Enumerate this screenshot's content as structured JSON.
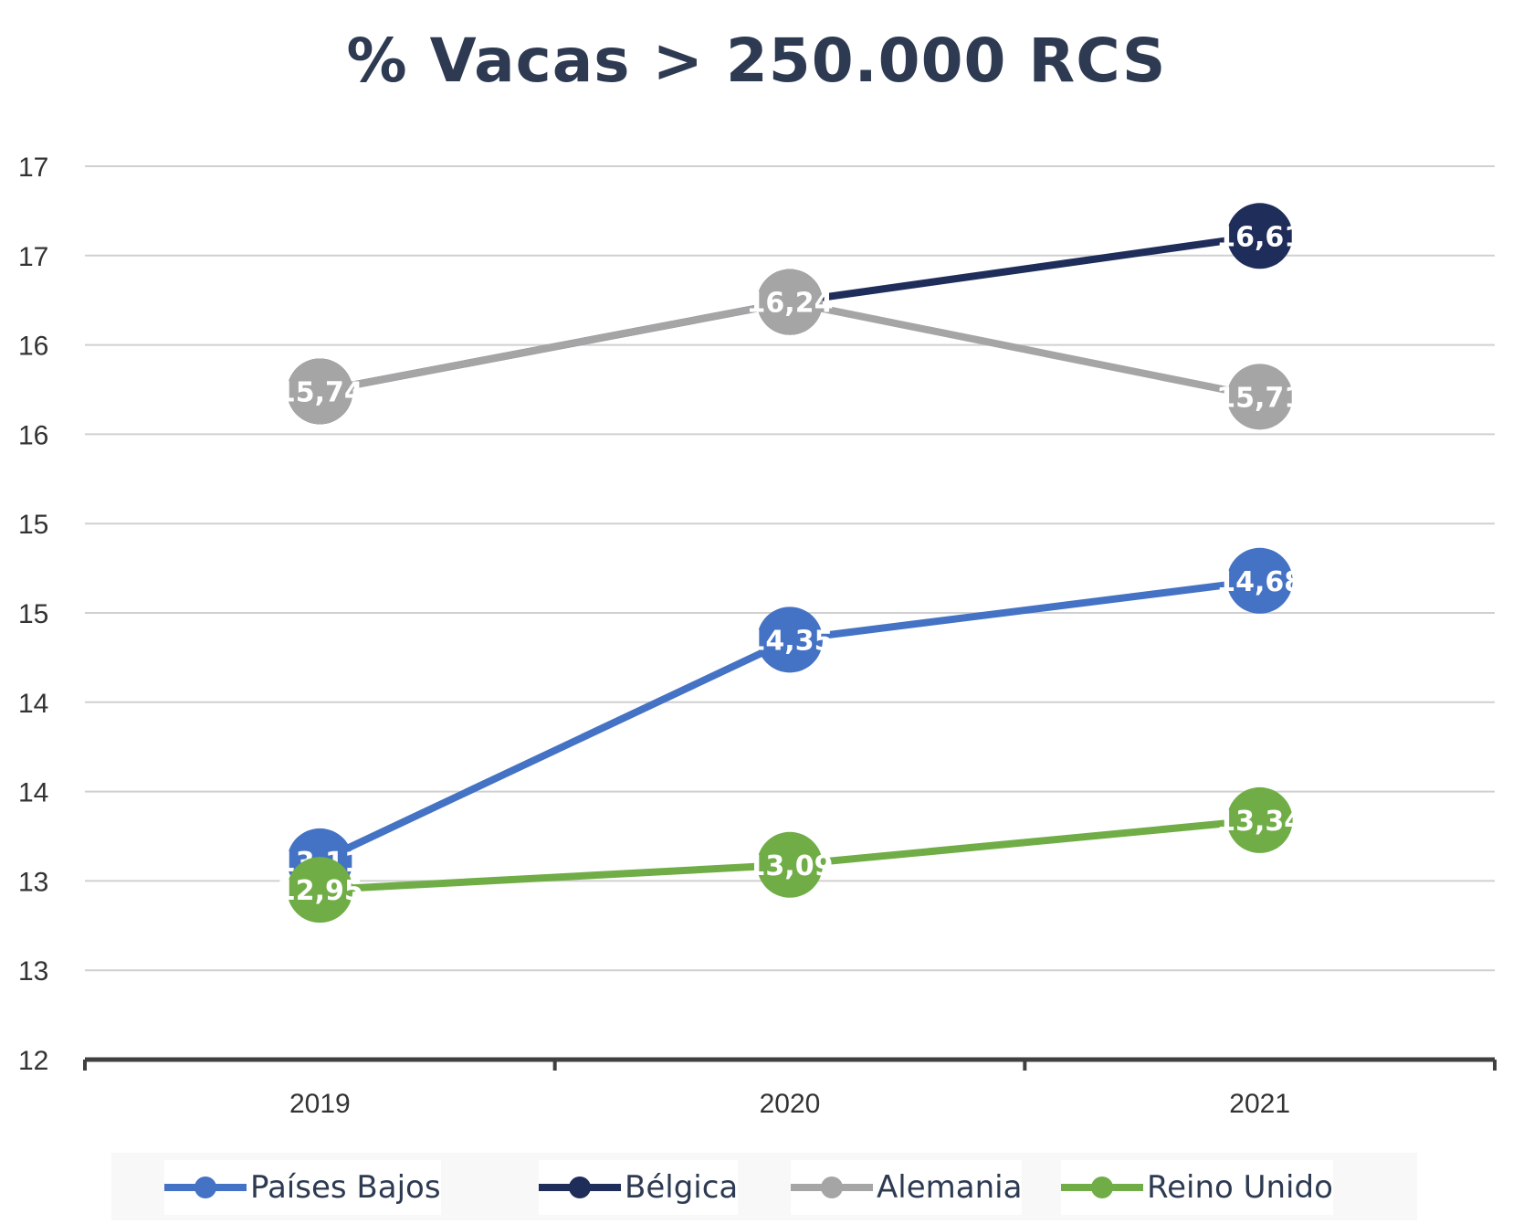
{
  "chart_data": {
    "type": "line",
    "title": "% Vacas > 250.000 RCS",
    "categories": [
      "2019",
      "2020",
      "2021"
    ],
    "y_tick_labels": [
      "12",
      "13",
      "13",
      "14",
      "14",
      "15",
      "15",
      "16",
      "16",
      "17",
      "17"
    ],
    "ylim": [
      12,
      17
    ],
    "grid": true,
    "legend_position": "bottom",
    "series": [
      {
        "name": "Países Bajos",
        "values": [
          13.11,
          14.35,
          14.68
        ],
        "labels": [
          "13,11",
          "14,35",
          "14,68"
        ],
        "color": "#4472c4"
      },
      {
        "name": "Bélgica",
        "values": [
          15.74,
          16.24,
          16.61
        ],
        "labels": [
          "15,74",
          "16,24",
          "16,61"
        ],
        "color": "#1f2d5a"
      },
      {
        "name": "Alemania",
        "values": [
          15.74,
          16.24,
          15.71
        ],
        "labels": [
          "15,74",
          "16,24",
          "15,71"
        ],
        "color": "#a5a5a5"
      },
      {
        "name": "Reino Unido",
        "values": [
          12.95,
          13.09,
          13.34
        ],
        "labels": [
          "12,95",
          "13,09",
          "13,34"
        ],
        "color": "#70ad47"
      }
    ]
  }
}
